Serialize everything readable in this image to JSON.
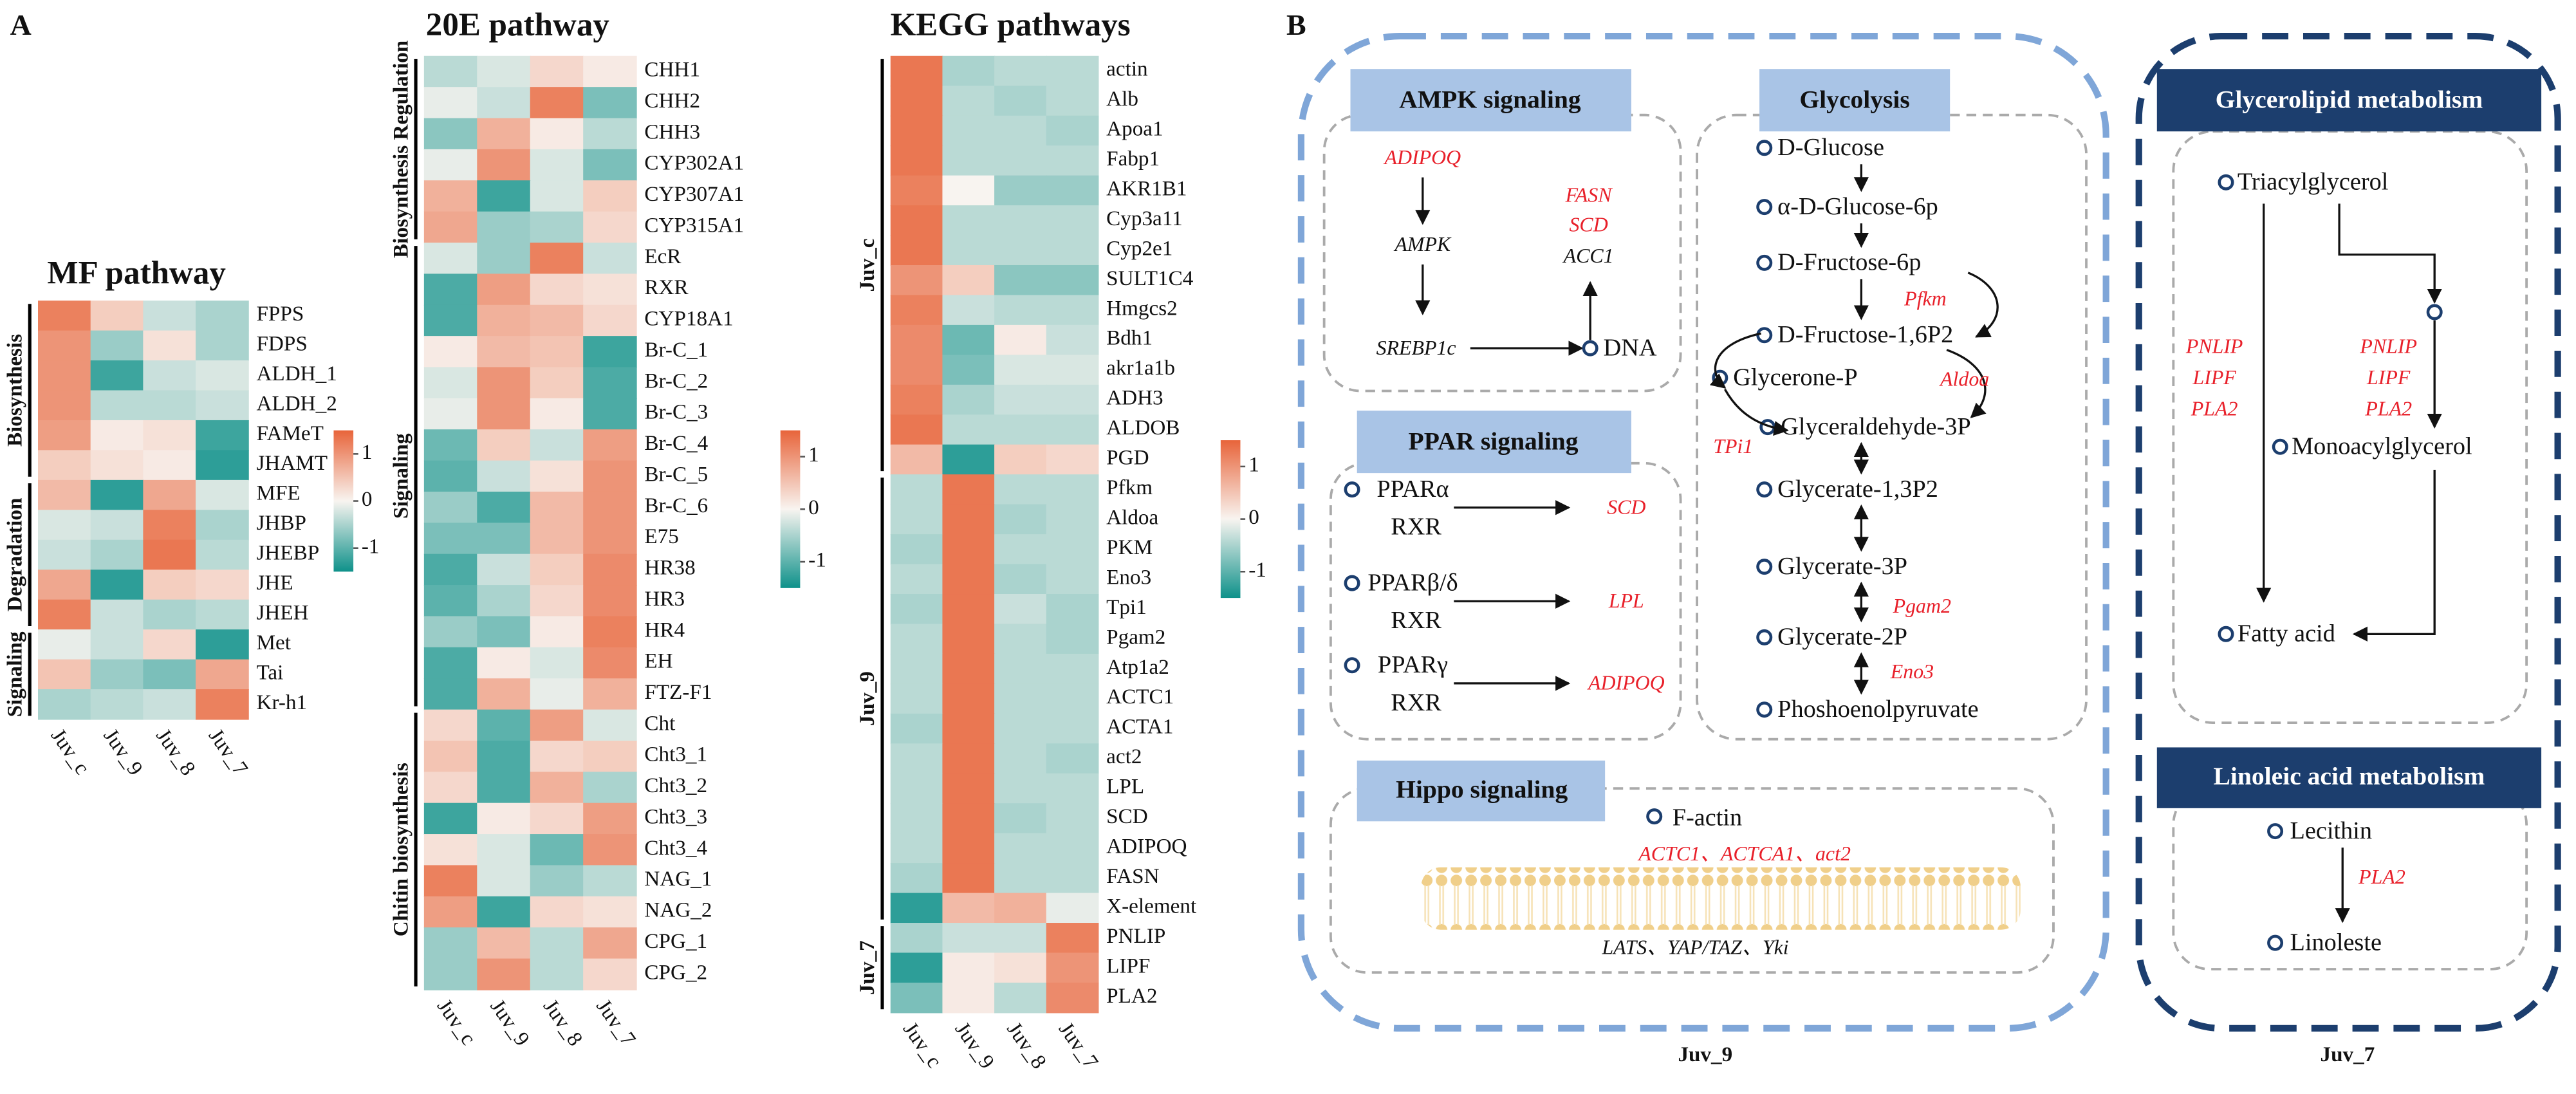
{
  "panel_labels": [
    "A",
    "B"
  ],
  "chart_data": [
    {
      "type": "heatmap",
      "title": "MF pathway",
      "columns": [
        "Juv_c",
        "Juv_9",
        "Juv_8",
        "Juv_7"
      ],
      "zlim": [
        -1.5,
        1.5
      ],
      "zticks": [
        -1,
        0,
        1
      ],
      "colors": {
        "low": "#0e918a",
        "mid": "#f8f4f0",
        "high": "#e8643a"
      },
      "row_groups": [
        {
          "label": "Biosynthesis",
          "rows": [
            "FPPS",
            "FDPS",
            "ALDH_1",
            "ALDH_2",
            "FAMeT",
            "JHAMT"
          ],
          "values": [
            [
              1.2,
              0.4,
              -0.3,
              -0.5
            ],
            [
              1.0,
              -0.6,
              0.2,
              -0.5
            ],
            [
              1.0,
              -1.2,
              -0.3,
              -0.2
            ],
            [
              1.0,
              -0.4,
              -0.4,
              -0.3
            ],
            [
              0.9,
              0.1,
              0.2,
              -1.2
            ],
            [
              0.4,
              0.2,
              0.1,
              -1.3
            ]
          ]
        },
        {
          "label": "Degradation",
          "rows": [
            "MFE",
            "JHBP",
            "JHEBP",
            "JHE",
            "JHEH"
          ],
          "values": [
            [
              0.6,
              -1.3,
              0.8,
              -0.2
            ],
            [
              -0.2,
              -0.3,
              1.2,
              -0.5
            ],
            [
              -0.3,
              -0.5,
              1.3,
              -0.4
            ],
            [
              0.8,
              -1.3,
              0.4,
              0.3
            ],
            [
              1.2,
              -0.3,
              -0.5,
              -0.4
            ]
          ]
        },
        {
          "label": "Signaling",
          "rows": [
            "Met",
            "Tai",
            "Kr-h1"
          ],
          "values": [
            [
              -0.1,
              -0.3,
              0.3,
              -1.3
            ],
            [
              0.5,
              -0.6,
              -0.8,
              0.8
            ],
            [
              -0.5,
              -0.4,
              -0.3,
              1.2
            ]
          ]
        }
      ]
    },
    {
      "type": "heatmap",
      "title": "20E pathway",
      "columns": [
        "Juv_c",
        "Juv_9",
        "Juv_8",
        "Juv_7"
      ],
      "zlim": [
        -1.5,
        1.5
      ],
      "zticks": [
        -1,
        0,
        1
      ],
      "colors": {
        "low": "#0e918a",
        "mid": "#f8f4f0",
        "high": "#e8643a"
      },
      "row_groups": [
        {
          "label": "Biosynthesis Regulation",
          "rows": [
            "CHH1",
            "CHH2",
            "CHH3",
            "CYP302A1",
            "CYP307A1",
            "CYP315A1"
          ],
          "values": [
            [
              -0.4,
              -0.2,
              0.3,
              0.1
            ],
            [
              -0.1,
              -0.3,
              1.2,
              -0.8
            ],
            [
              -0.7,
              0.7,
              0.1,
              -0.4
            ],
            [
              -0.1,
              1.0,
              -0.2,
              -0.8
            ],
            [
              0.7,
              -1.2,
              -0.2,
              0.4
            ],
            [
              0.8,
              -0.6,
              -0.5,
              0.3
            ]
          ]
        },
        {
          "label": "Signaling",
          "rows": [
            "EcR",
            "RXR",
            "CYP18A1",
            "Br-C_1",
            "Br-C_2",
            "Br-C_3",
            "Br-C_4",
            "Br-C_5",
            "Br-C_6",
            "E75",
            "HR38",
            "HR3",
            "HR4",
            "EH",
            "FTZ-F1"
          ],
          "values": [
            [
              -0.2,
              -0.6,
              1.2,
              -0.3
            ],
            [
              -1.1,
              0.9,
              0.3,
              0.2
            ],
            [
              -1.1,
              0.7,
              0.6,
              0.3
            ],
            [
              0.1,
              0.6,
              0.5,
              -1.2
            ],
            [
              -0.2,
              1.0,
              0.4,
              -1.1
            ],
            [
              -0.1,
              1.0,
              0.1,
              -1.1
            ],
            [
              -0.9,
              0.4,
              -0.3,
              0.9
            ],
            [
              -1.0,
              -0.3,
              0.2,
              1.0
            ],
            [
              -0.6,
              -1.1,
              0.6,
              1.0
            ],
            [
              -0.8,
              -0.8,
              0.6,
              1.0
            ],
            [
              -1.1,
              -0.3,
              0.4,
              1.1
            ],
            [
              -1.0,
              -0.5,
              0.3,
              1.1
            ],
            [
              -0.6,
              -0.8,
              0.1,
              1.2
            ],
            [
              -1.1,
              0.1,
              -0.2,
              1.1
            ],
            [
              -1.1,
              0.7,
              -0.1,
              0.7
            ]
          ]
        },
        {
          "label": "Chitin biosynthesis",
          "rows": [
            "Cht",
            "Cht3_1",
            "Cht3_2",
            "Cht3_3",
            "Cht3_4",
            "NAG_1",
            "NAG_2",
            "CPG_1",
            "CPG_2"
          ],
          "values": [
            [
              0.3,
              -1.0,
              0.9,
              -0.2
            ],
            [
              0.5,
              -1.1,
              0.3,
              0.4
            ],
            [
              0.3,
              -1.1,
              0.7,
              -0.5
            ],
            [
              -1.2,
              0.1,
              0.3,
              0.9
            ],
            [
              0.2,
              -0.2,
              -0.9,
              1.0
            ],
            [
              1.2,
              -0.2,
              -0.6,
              -0.4
            ],
            [
              0.9,
              -1.2,
              0.3,
              0.2
            ],
            [
              -0.6,
              0.6,
              -0.4,
              0.8
            ],
            [
              -0.6,
              1.0,
              -0.4,
              0.3
            ]
          ]
        }
      ]
    },
    {
      "type": "heatmap",
      "title": "KEGG pathways",
      "columns": [
        "Juv_c",
        "Juv_9",
        "Juv_8",
        "Juv_7"
      ],
      "zlim": [
        -1.5,
        1.5
      ],
      "zticks": [
        -1,
        0,
        1
      ],
      "colors": {
        "low": "#0e918a",
        "mid": "#f8f4f0",
        "high": "#e8643a"
      },
      "row_groups": [
        {
          "label": "Juv_c",
          "rows": [
            "actin",
            "Alb",
            "Apoa1",
            "Fabp1",
            "AKR1B1",
            "Cyp3a11",
            "Cyp2e1",
            "SULT1C4",
            "Hmgcs2",
            "Bdh1",
            "akr1a1b",
            "ADH3",
            "ALDOB",
            "PGD"
          ],
          "values": [
            [
              1.3,
              -0.5,
              -0.4,
              -0.4
            ],
            [
              1.3,
              -0.4,
              -0.5,
              -0.4
            ],
            [
              1.3,
              -0.4,
              -0.4,
              -0.5
            ],
            [
              1.3,
              -0.4,
              -0.4,
              -0.4
            ],
            [
              1.2,
              0.0,
              -0.6,
              -0.6
            ],
            [
              1.3,
              -0.4,
              -0.4,
              -0.4
            ],
            [
              1.3,
              -0.4,
              -0.4,
              -0.4
            ],
            [
              1.0,
              0.4,
              -0.7,
              -0.7
            ],
            [
              1.2,
              -0.3,
              -0.4,
              -0.4
            ],
            [
              1.1,
              -0.9,
              0.1,
              -0.3
            ],
            [
              1.1,
              -0.8,
              -0.2,
              -0.2
            ],
            [
              1.2,
              -0.5,
              -0.3,
              -0.3
            ],
            [
              1.3,
              -0.4,
              -0.4,
              -0.4
            ],
            [
              0.6,
              -1.3,
              0.4,
              0.3
            ]
          ]
        },
        {
          "label": "Juv_9",
          "rows": [
            "Pfkm",
            "Aldoa",
            "PKM",
            "Eno3",
            "Tpi1",
            "Pgam2",
            "Atp1a2",
            "ACTC1",
            "ACTA1",
            "act2",
            "LPL",
            "SCD",
            "ADIPOQ",
            "FASN",
            "X-element"
          ],
          "values": [
            [
              -0.4,
              1.3,
              -0.4,
              -0.4
            ],
            [
              -0.4,
              1.3,
              -0.5,
              -0.4
            ],
            [
              -0.5,
              1.3,
              -0.4,
              -0.4
            ],
            [
              -0.4,
              1.3,
              -0.5,
              -0.4
            ],
            [
              -0.5,
              1.3,
              -0.3,
              -0.5
            ],
            [
              -0.4,
              1.3,
              -0.4,
              -0.5
            ],
            [
              -0.4,
              1.3,
              -0.4,
              -0.4
            ],
            [
              -0.4,
              1.3,
              -0.4,
              -0.4
            ],
            [
              -0.5,
              1.3,
              -0.4,
              -0.4
            ],
            [
              -0.4,
              1.3,
              -0.4,
              -0.5
            ],
            [
              -0.4,
              1.3,
              -0.4,
              -0.4
            ],
            [
              -0.4,
              1.3,
              -0.5,
              -0.4
            ],
            [
              -0.4,
              1.3,
              -0.4,
              -0.4
            ],
            [
              -0.5,
              1.3,
              -0.4,
              -0.4
            ],
            [
              -1.3,
              0.6,
              0.7,
              -0.1
            ]
          ]
        },
        {
          "label": "Juv_7",
          "rows": [
            "PNLIP",
            "LIPF",
            "PLA2"
          ],
          "values": [
            [
              -0.5,
              -0.3,
              -0.3,
              1.2
            ],
            [
              -1.3,
              0.1,
              0.2,
              1.0
            ],
            [
              -0.8,
              0.1,
              -0.4,
              1.1
            ]
          ]
        }
      ]
    }
  ],
  "pathways": {
    "group_labels": [
      "Juv_9",
      "Juv_7"
    ],
    "ampk": {
      "title": "AMPK signaling",
      "adipoq": "ADIPOQ",
      "ampk": "AMPK",
      "srebp1c": "SREBP1c",
      "dna": "DNA",
      "targets": [
        "FASN",
        "SCD",
        "ACC1"
      ]
    },
    "glycolysis": {
      "title": "Glycolysis",
      "metabolites": [
        "D-Glucose",
        "α-D-Glucose-6p",
        "D-Fructose-6p",
        "D-Fructose-1,6P2",
        "Glycerone-P",
        "Glyceraldehyde-3P",
        "Glycerate-1,3P2",
        "Glycerate-3P",
        "Glycerate-2P",
        "Phoshoenolpyruvate"
      ],
      "enzymes": [
        "Pfkm",
        "Aldoa",
        "TPi1",
        "Pgam2",
        "Eno3"
      ]
    },
    "ppar": {
      "title": "PPAR signaling",
      "rows": [
        {
          "receptor": "PPARα",
          "partner": "RXR",
          "target": "SCD"
        },
        {
          "receptor": "PPARβ/δ",
          "partner": "RXR",
          "target": "LPL"
        },
        {
          "receptor": "PPARγ",
          "partner": "RXR",
          "target": "ADIPOQ"
        }
      ]
    },
    "hippo": {
      "title": "Hippo signaling",
      "factin": "F-actin",
      "genes": "ACTC1、ACTCA1、act2",
      "core": "LATS、YAP/TAZ、Yki"
    },
    "glycerolipid": {
      "title": "Glycerolipid metabolism",
      "triacylglycerol": "Triacylglycerol",
      "monoacylglycerol": "Monoacylglycerol",
      "fatty_acid": "Fatty acid",
      "enzymes_left": [
        "PNLIP",
        "LIPF",
        "PLA2"
      ],
      "enzymes_right": [
        "PNLIP",
        "LIPF",
        "PLA2"
      ]
    },
    "linoleic": {
      "title": "Linoleic acid metabolism",
      "lecithin": "Lecithin",
      "enzyme": "PLA2",
      "linoleste": "Linoleste"
    }
  }
}
